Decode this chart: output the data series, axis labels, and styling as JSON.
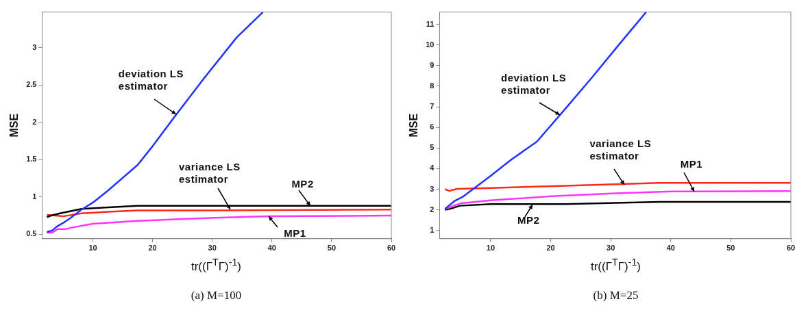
{
  "chart_data": [
    {
      "type": "line",
      "title": "(a)  M=100",
      "xlabel": "tr((Γ$^{T}$Γ)$^{-1}$)",
      "ylabel": "MSE",
      "xlim": [
        1.5,
        60
      ],
      "ylim": [
        0.44,
        3.48
      ],
      "xticks": [
        10,
        20,
        30,
        40,
        50,
        60
      ],
      "yticks": [
        0.5,
        1,
        1.5,
        2,
        2.5,
        3
      ],
      "grid": false,
      "legend": false,
      "marker": "none",
      "line_style": "solid",
      "series": [
        {
          "color": "#2233ff",
          "x": [
            2.3,
            3.2,
            3.9,
            5.0,
            6.3,
            8.1,
            10.1,
            12.6,
            17.5,
            19.8,
            24.2,
            28.7,
            34.1,
            38.5
          ],
          "values": [
            0.53,
            0.55,
            0.6,
            0.65,
            0.72,
            0.83,
            0.93,
            1.09,
            1.43,
            1.66,
            2.13,
            2.6,
            3.14,
            3.48
          ]
        },
        {
          "color": "#000000",
          "x": [
            2.3,
            3.0,
            4.5,
            8.1,
            12.6,
            17.5,
            60
          ],
          "values": [
            0.73,
            0.75,
            0.78,
            0.84,
            0.86,
            0.88,
            0.88
          ]
        },
        {
          "color": "#ff2a1a",
          "x": [
            2.3,
            5.0,
            8.1,
            12.6,
            17.5,
            30.5,
            60
          ],
          "values": [
            0.76,
            0.74,
            0.78,
            0.8,
            0.82,
            0.82,
            0.83
          ]
        },
        {
          "color": "#ff33ff",
          "x": [
            2.3,
            3.2,
            4.1,
            5.4,
            7.2,
            10,
            17.5,
            30.5,
            39.5,
            60
          ],
          "values": [
            0.52,
            0.52,
            0.57,
            0.57,
            0.6,
            0.64,
            0.68,
            0.72,
            0.74,
            0.75
          ]
        }
      ],
      "annotations": [
        {
          "text": "deviation LS\nestimator",
          "x": 24.0,
          "y": 2.11
        },
        {
          "text": "variance LS\nestimator",
          "x": 33.0,
          "y": 0.83
        },
        {
          "text": "MP2",
          "x": 46.4,
          "y": 0.88
        },
        {
          "text": "MP1",
          "x": 39.5,
          "y": 0.74
        }
      ]
    },
    {
      "type": "line",
      "title": "(b)  M=25",
      "xlabel": "tr((Γ$^{T}$Γ)$^{-1}$)",
      "ylabel": "MSE",
      "xlim": [
        1.5,
        60
      ],
      "ylim": [
        0.6,
        11.6
      ],
      "xticks": [
        10,
        20,
        30,
        40,
        50,
        60
      ],
      "yticks": [
        1,
        2,
        3,
        4,
        5,
        6,
        7,
        8,
        9,
        10,
        11
      ],
      "grid": false,
      "legend": false,
      "marker": "none",
      "line_style": "solid",
      "series": [
        {
          "color": "#2233ff",
          "x": [
            2.4,
            4.0,
            5.3,
            10,
            13.4,
            17.7,
            22.4,
            26.9,
            31.4,
            35.9
          ],
          "values": [
            2.05,
            2.43,
            2.62,
            3.65,
            4.43,
            5.31,
            6.89,
            8.43,
            10.03,
            11.6
          ]
        },
        {
          "color": "#ff2a1a",
          "x": [
            2.4,
            3.1,
            4.4,
            10,
            22.4,
            38.1,
            60
          ],
          "values": [
            3.0,
            2.92,
            3.02,
            3.06,
            3.17,
            3.31,
            3.31
          ]
        },
        {
          "color": "#ff33ff",
          "x": [
            2.4,
            4.9,
            10,
            20.1,
            31.4,
            40.3,
            60
          ],
          "values": [
            2.05,
            2.31,
            2.46,
            2.66,
            2.81,
            2.89,
            2.91
          ]
        },
        {
          "color": "#000000",
          "x": [
            2.4,
            3.3,
            4.9,
            10,
            22.4,
            38.1,
            60
          ],
          "values": [
            2.0,
            2.05,
            2.2,
            2.28,
            2.28,
            2.39,
            2.39
          ]
        }
      ],
      "annotations": [
        {
          "text": "deviation LS\nestimator",
          "x": 21.5,
          "y": 6.6
        },
        {
          "text": "variance LS\nestimator",
          "x": 32.3,
          "y": 3.22
        },
        {
          "text": "MP1",
          "x": 43.9,
          "y": 2.89
        },
        {
          "text": "MP2",
          "x": 17.0,
          "y": 2.27
        }
      ]
    }
  ]
}
